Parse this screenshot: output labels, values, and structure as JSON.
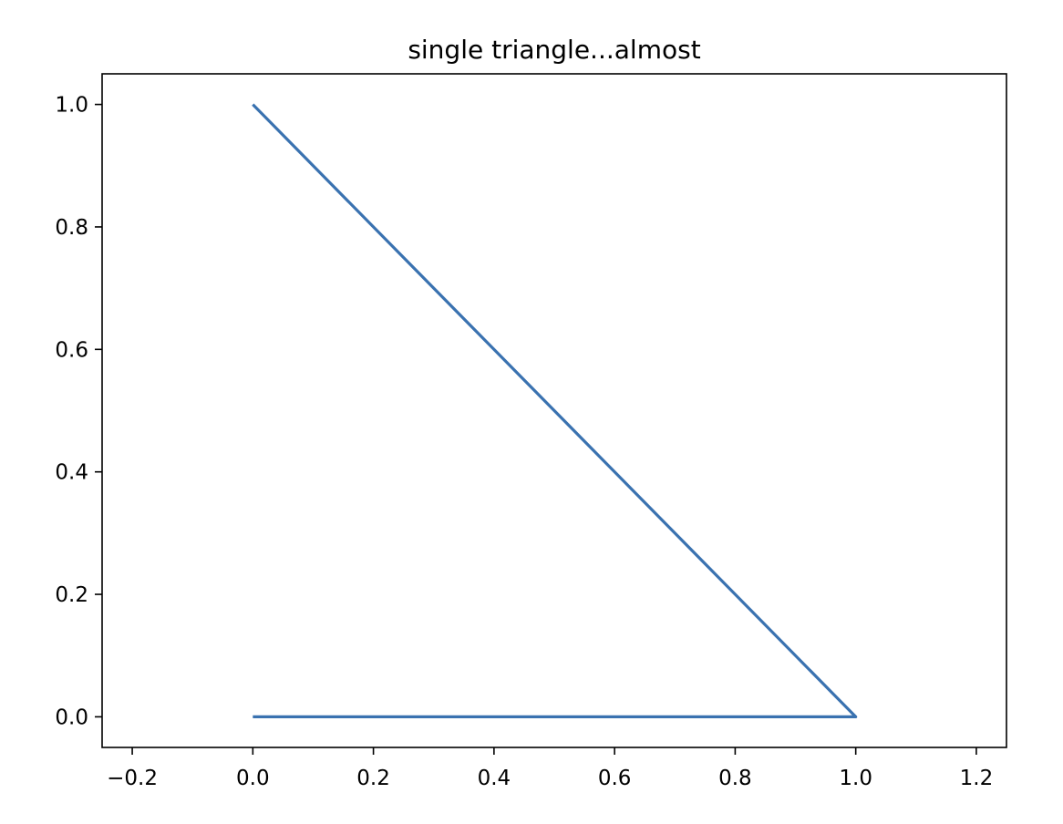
{
  "chart_data": {
    "type": "line",
    "title": "single triangle...almost",
    "xlabel": "",
    "ylabel": "",
    "xlim": [
      -0.25,
      1.25
    ],
    "ylim": [
      -0.05,
      1.05
    ],
    "xticks": [
      -0.2,
      0.0,
      0.2,
      0.4,
      0.6,
      0.8,
      1.0,
      1.2
    ],
    "xtick_labels": [
      "−0.2",
      "0.0",
      "0.2",
      "0.4",
      "0.6",
      "0.8",
      "1.0",
      "1.2"
    ],
    "yticks": [
      0.0,
      0.2,
      0.4,
      0.6,
      0.8,
      1.0
    ],
    "ytick_labels": [
      "0.0",
      "0.2",
      "0.4",
      "0.6",
      "0.8",
      "1.0"
    ],
    "grid": false,
    "series": [
      {
        "x": [
          0.0,
          1.0,
          0.0
        ],
        "y": [
          0.0,
          0.0,
          1.0
        ],
        "color": "#3a72b0"
      }
    ]
  }
}
